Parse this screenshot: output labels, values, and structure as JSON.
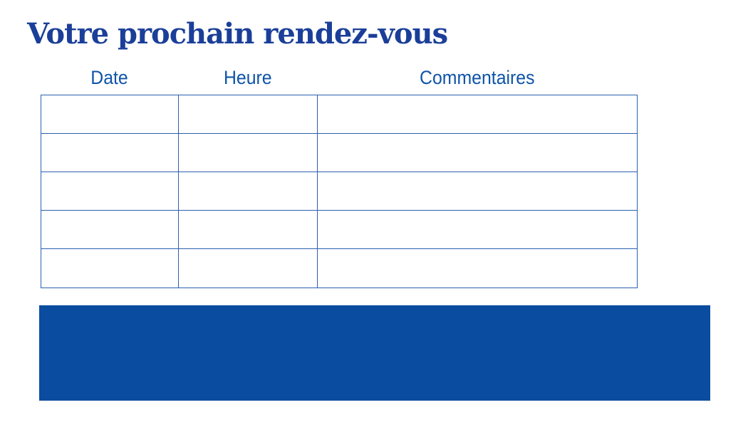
{
  "page": {
    "title": "Votre prochain rendez-vous"
  },
  "appointments_table": {
    "columns": [
      "Date",
      "Heure",
      "Commentaires"
    ],
    "rows": [
      [
        "",
        "",
        ""
      ],
      [
        "",
        "",
        ""
      ],
      [
        "",
        "",
        ""
      ],
      [
        "",
        "",
        ""
      ],
      [
        "",
        "",
        ""
      ]
    ]
  },
  "footer_band": {
    "text": ""
  },
  "colors": {
    "title_blue": "#1b3f99",
    "header_text_blue": "#1054a8",
    "table_border_blue": "#2b5fae",
    "band_blue": "#0a4c9f",
    "background": "#ffffff"
  }
}
